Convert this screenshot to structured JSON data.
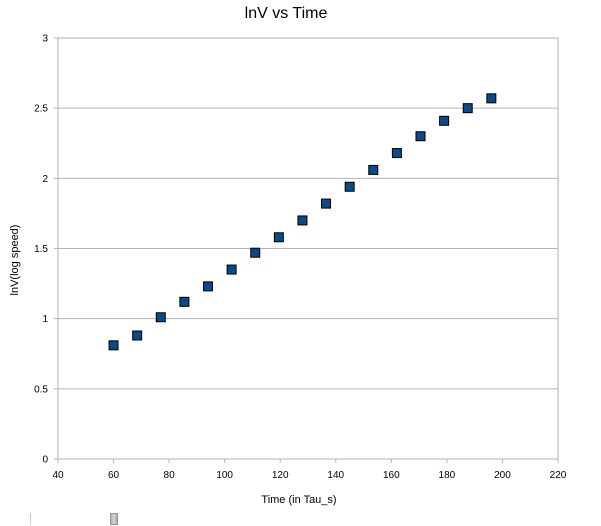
{
  "chart_data": {
    "type": "scatter",
    "title": "lnV vs Time",
    "xlabel": "Time (in Tau_s)",
    "ylabel": "lnV(log speed)",
    "xlim": [
      40,
      220
    ],
    "ylim": [
      0,
      3
    ],
    "xticks": [
      40,
      60,
      80,
      100,
      120,
      140,
      160,
      180,
      200,
      220
    ],
    "yticks": [
      0,
      0.5,
      1,
      1.5,
      2,
      2.5,
      3
    ],
    "ytick_labels": [
      "0",
      "0.5",
      "1",
      "1.5",
      "2",
      "2.5",
      "3"
    ],
    "grid": {
      "x": false,
      "y": true
    },
    "legend": "none",
    "marker": "square",
    "marker_color": "#0b4a8a",
    "series": [
      {
        "points": [
          {
            "x": 60,
            "y": 0.81
          },
          {
            "x": 68.5,
            "y": 0.88
          },
          {
            "x": 77,
            "y": 1.01
          },
          {
            "x": 85.5,
            "y": 1.12
          },
          {
            "x": 94,
            "y": 1.23
          },
          {
            "x": 102.5,
            "y": 1.35
          },
          {
            "x": 111,
            "y": 1.47
          },
          {
            "x": 119.5,
            "y": 1.58
          },
          {
            "x": 128,
            "y": 1.7
          },
          {
            "x": 136.5,
            "y": 1.82
          },
          {
            "x": 145,
            "y": 1.94
          },
          {
            "x": 153.5,
            "y": 2.06
          },
          {
            "x": 162,
            "y": 2.18
          },
          {
            "x": 170.5,
            "y": 2.3
          },
          {
            "x": 179,
            "y": 2.41
          },
          {
            "x": 187.5,
            "y": 2.5
          },
          {
            "x": 196,
            "y": 2.57
          }
        ]
      }
    ]
  }
}
